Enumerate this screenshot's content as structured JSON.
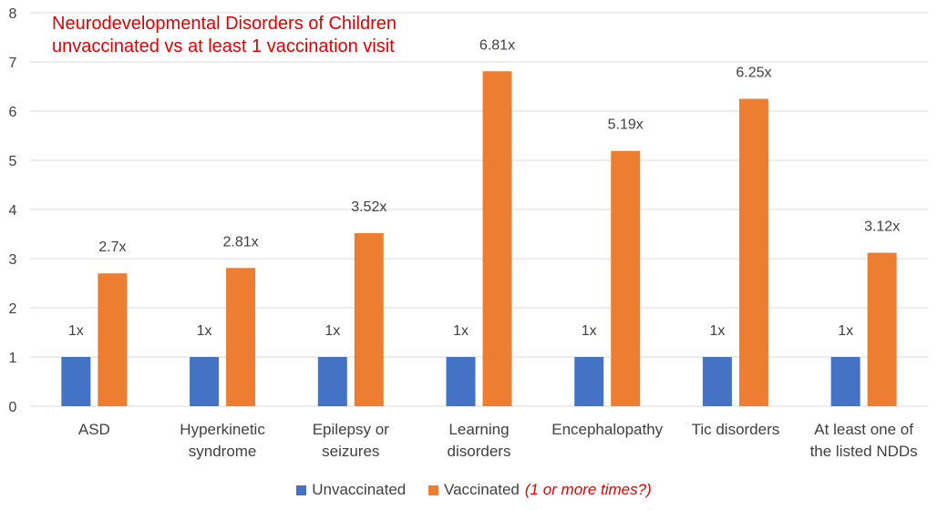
{
  "title_lines": [
    "Neurodevelopmental Disorders of Children",
    "unvaccinated vs  at least 1 vaccination visit"
  ],
  "legend": {
    "unvaccinated_label": "Unvaccinated",
    "vaccinated_label": "Vaccinated",
    "vaccinated_note": "(1 or more times?)"
  },
  "colors": {
    "unvaccinated": "#4472c4",
    "vaccinated": "#ed7d31",
    "title": "#e00000",
    "gridline": "#d9d9d9",
    "text": "#404040"
  },
  "chart_data": {
    "type": "bar",
    "title": "Neurodevelopmental Disorders of Children unvaccinated vs  at least 1 vaccination visit",
    "categories": [
      [
        "ASD"
      ],
      [
        "Hyperkinetic",
        "syndrome"
      ],
      [
        "Epilepsy or",
        "seizures"
      ],
      [
        "Learning",
        "disorders"
      ],
      [
        "Encephalopathy"
      ],
      [
        "Tic disorders"
      ],
      [
        "At least one of",
        "the listed NDDs"
      ]
    ],
    "series": [
      {
        "name": "Unvaccinated",
        "values": [
          1,
          1,
          1,
          1,
          1,
          1,
          1
        ],
        "labels": [
          "1x",
          "1x",
          "1x",
          "1x",
          "1x",
          "1x",
          "1x"
        ]
      },
      {
        "name": "Vaccinated",
        "values": [
          2.7,
          2.81,
          3.52,
          6.81,
          5.19,
          6.25,
          3.12
        ],
        "labels": [
          "2.7x",
          "2.81x",
          "3.52x",
          "6.81x",
          "5.19x",
          "6.25x",
          "3.12x"
        ]
      }
    ],
    "ylim": [
      0,
      8
    ],
    "yticks": [
      0,
      1,
      2,
      3,
      4,
      5,
      6,
      7,
      8
    ],
    "grid": true,
    "legend_position": "bottom"
  }
}
